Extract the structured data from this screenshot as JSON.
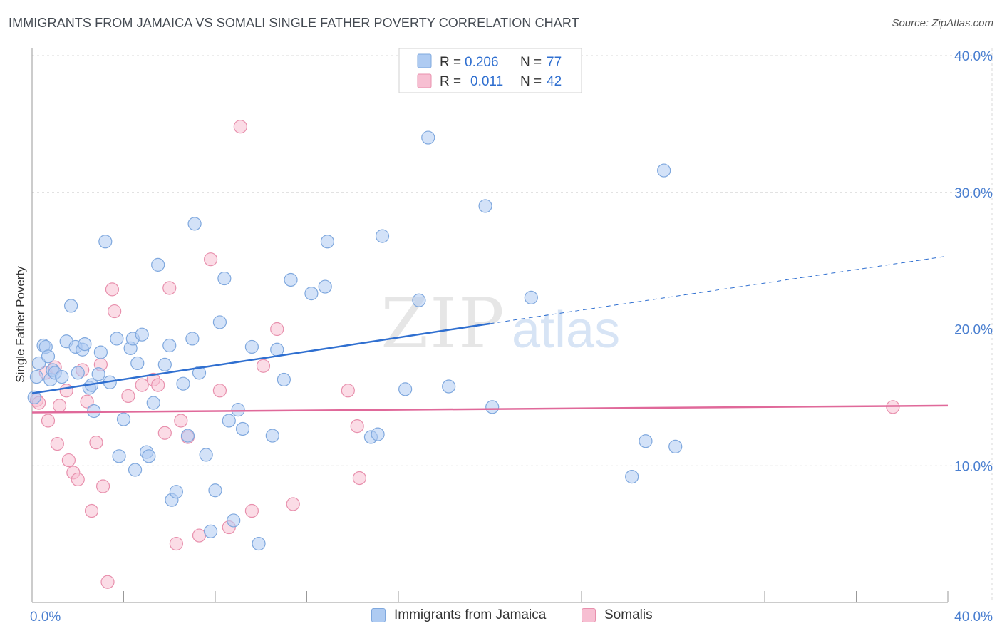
{
  "title": "IMMIGRANTS FROM JAMAICA VS SOMALI SINGLE FATHER POVERTY CORRELATION CHART",
  "source": "Source: ZipAtlas.com",
  "watermark": {
    "zip": "ZIP",
    "atlas": "atlas"
  },
  "colors": {
    "blue_fill": "#aecbf2",
    "blue_stroke": "#7fa8de",
    "blue_line": "#2f6fd0",
    "pink_fill": "#f7bfd2",
    "pink_stroke": "#e890ad",
    "pink_line": "#e0699a",
    "tick_label": "#4a7fd0",
    "grid": "#d9d9d9"
  },
  "legend_top": {
    "rows": [
      {
        "r_label": "R =",
        "r_value": "0.206",
        "n_label": "N =",
        "n_value": "77"
      },
      {
        "r_label": "R =",
        "r_value": "0.011",
        "n_label": "N =",
        "n_value": "42"
      }
    ]
  },
  "chart_data": {
    "type": "scatter",
    "title": "IMMIGRANTS FROM JAMAICA VS SOMALI SINGLE FATHER POVERTY CORRELATION CHART",
    "xlabel": "",
    "ylabel": "Single Father Poverty",
    "xlim": [
      0,
      40
    ],
    "ylim": [
      0,
      40
    ],
    "x_tick_labels": [
      "0.0%",
      "40.0%"
    ],
    "y_ticks": [
      10,
      20,
      30,
      40
    ],
    "y_tick_labels": [
      "10.0%",
      "20.0%",
      "30.0%",
      "40.0%"
    ],
    "grid": true,
    "legend_position": "bottom",
    "series": [
      {
        "name": "Immigrants from Jamaica",
        "color": "#aecbf2",
        "points": [
          [
            0.1,
            15.0
          ],
          [
            0.2,
            16.5
          ],
          [
            0.3,
            17.5
          ],
          [
            0.5,
            18.8
          ],
          [
            0.6,
            18.7
          ],
          [
            0.7,
            18.0
          ],
          [
            0.8,
            16.3
          ],
          [
            0.9,
            17.0
          ],
          [
            1.0,
            16.8
          ],
          [
            1.3,
            16.5
          ],
          [
            1.5,
            19.1
          ],
          [
            1.7,
            21.7
          ],
          [
            1.9,
            18.7
          ],
          [
            2.0,
            16.8
          ],
          [
            2.2,
            18.5
          ],
          [
            2.3,
            18.9
          ],
          [
            2.5,
            15.7
          ],
          [
            2.6,
            15.9
          ],
          [
            2.7,
            14.0
          ],
          [
            2.9,
            16.7
          ],
          [
            3.0,
            18.3
          ],
          [
            3.2,
            26.4
          ],
          [
            3.4,
            16.1
          ],
          [
            3.7,
            19.3
          ],
          [
            3.8,
            10.7
          ],
          [
            4.0,
            13.4
          ],
          [
            4.3,
            18.6
          ],
          [
            4.4,
            19.3
          ],
          [
            4.5,
            9.7
          ],
          [
            4.6,
            17.5
          ],
          [
            4.8,
            19.6
          ],
          [
            5.0,
            11.0
          ],
          [
            5.1,
            10.7
          ],
          [
            5.3,
            14.6
          ],
          [
            5.5,
            24.7
          ],
          [
            5.8,
            17.4
          ],
          [
            6.0,
            18.8
          ],
          [
            6.1,
            7.5
          ],
          [
            6.3,
            8.1
          ],
          [
            6.6,
            16.0
          ],
          [
            6.8,
            12.2
          ],
          [
            7.0,
            19.3
          ],
          [
            7.1,
            27.7
          ],
          [
            7.3,
            16.8
          ],
          [
            7.6,
            10.8
          ],
          [
            7.8,
            5.2
          ],
          [
            8.0,
            8.2
          ],
          [
            8.2,
            20.5
          ],
          [
            8.4,
            23.7
          ],
          [
            8.6,
            13.3
          ],
          [
            8.8,
            6.0
          ],
          [
            9.0,
            14.1
          ],
          [
            9.2,
            12.7
          ],
          [
            9.6,
            18.7
          ],
          [
            9.9,
            4.3
          ],
          [
            10.5,
            12.2
          ],
          [
            10.7,
            18.5
          ],
          [
            11.0,
            16.3
          ],
          [
            11.3,
            23.6
          ],
          [
            12.2,
            22.6
          ],
          [
            12.8,
            23.1
          ],
          [
            12.9,
            26.4
          ],
          [
            14.8,
            12.1
          ],
          [
            15.1,
            12.3
          ],
          [
            15.3,
            26.8
          ],
          [
            16.3,
            15.6
          ],
          [
            16.9,
            22.1
          ],
          [
            17.3,
            34.0
          ],
          [
            18.2,
            15.8
          ],
          [
            19.8,
            29.0
          ],
          [
            20.1,
            14.3
          ],
          [
            21.8,
            22.3
          ],
          [
            23.0,
            39.2
          ],
          [
            26.2,
            9.2
          ],
          [
            26.8,
            11.8
          ],
          [
            27.6,
            31.6
          ],
          [
            28.1,
            11.4
          ]
        ]
      },
      {
        "name": "Somalis",
        "color": "#f7bfd2",
        "points": [
          [
            0.2,
            14.8
          ],
          [
            0.3,
            14.6
          ],
          [
            0.6,
            16.8
          ],
          [
            0.7,
            13.3
          ],
          [
            1.0,
            17.2
          ],
          [
            1.1,
            11.6
          ],
          [
            1.2,
            14.4
          ],
          [
            1.5,
            15.5
          ],
          [
            1.6,
            10.4
          ],
          [
            1.8,
            9.5
          ],
          [
            2.0,
            9.0
          ],
          [
            2.2,
            17.0
          ],
          [
            2.4,
            14.7
          ],
          [
            2.6,
            6.7
          ],
          [
            2.8,
            11.7
          ],
          [
            3.0,
            17.4
          ],
          [
            3.1,
            8.5
          ],
          [
            3.3,
            1.5
          ],
          [
            3.5,
            22.9
          ],
          [
            3.6,
            21.3
          ],
          [
            4.2,
            15.1
          ],
          [
            4.8,
            15.9
          ],
          [
            5.3,
            16.3
          ],
          [
            5.5,
            15.9
          ],
          [
            5.8,
            12.4
          ],
          [
            6.0,
            23.0
          ],
          [
            6.3,
            4.3
          ],
          [
            6.5,
            13.3
          ],
          [
            6.8,
            12.1
          ],
          [
            7.3,
            4.9
          ],
          [
            7.8,
            25.1
          ],
          [
            8.2,
            15.5
          ],
          [
            8.6,
            5.5
          ],
          [
            9.1,
            34.8
          ],
          [
            9.6,
            6.7
          ],
          [
            10.1,
            17.3
          ],
          [
            10.7,
            20.0
          ],
          [
            11.4,
            7.2
          ],
          [
            13.8,
            15.5
          ],
          [
            14.2,
            12.9
          ],
          [
            14.3,
            9.1
          ],
          [
            37.6,
            14.3
          ]
        ]
      }
    ],
    "trend_lines": [
      {
        "series": "Immigrants from Jamaica",
        "solid": [
          [
            0,
            15.3
          ],
          [
            20,
            20.4
          ]
        ],
        "dashed": [
          [
            20,
            20.4
          ],
          [
            40,
            25.3
          ]
        ]
      },
      {
        "series": "Somalis",
        "solid": [
          [
            0,
            13.9
          ],
          [
            40,
            14.4
          ]
        ]
      }
    ]
  }
}
